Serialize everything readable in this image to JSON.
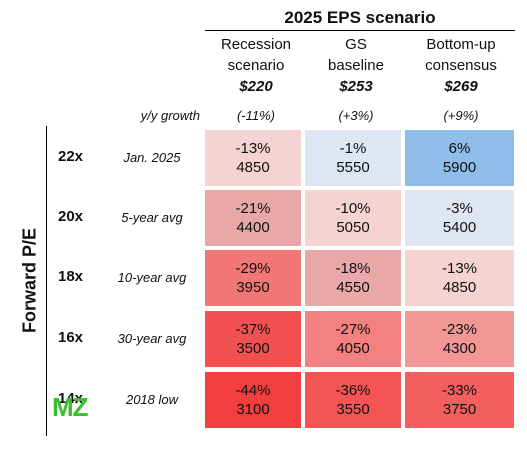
{
  "chart_data": {
    "type": "table",
    "title": "2025 EPS scenario",
    "row_axis_label": "Forward P/E",
    "growth_row_label": "y/y growth",
    "columns": [
      {
        "label_line1": "Recession",
        "label_line2": "scenario",
        "eps": "$220",
        "growth": "(-11%)"
      },
      {
        "label_line1": "GS",
        "label_line2": "baseline",
        "eps": "$253",
        "growth": "(+3%)"
      },
      {
        "label_line1": "Bottom-up",
        "label_line2": "consensus",
        "eps": "$269",
        "growth": "(+9%)"
      }
    ],
    "rows": [
      {
        "pe": "22x",
        "label": "Jan. 2025",
        "cells": [
          {
            "pct": "-13%",
            "level": "4850",
            "color": "#f6d3d3"
          },
          {
            "pct": "-1%",
            "level": "5550",
            "color": "#dde6f2"
          },
          {
            "pct": "6%",
            "level": "5900",
            "color": "#8dbde8"
          }
        ]
      },
      {
        "pe": "20x",
        "label": "5-year avg",
        "cells": [
          {
            "pct": "-21%",
            "level": "4400",
            "color": "#e9a8a8"
          },
          {
            "pct": "-10%",
            "level": "5050",
            "color": "#f6d3d3"
          },
          {
            "pct": "-3%",
            "level": "5400",
            "color": "#dfe5f1"
          }
        ]
      },
      {
        "pe": "18x",
        "label": "10-year avg",
        "cells": [
          {
            "pct": "-29%",
            "level": "3950",
            "color": "#f27777"
          },
          {
            "pct": "-18%",
            "level": "4550",
            "color": "#e9a8a8"
          },
          {
            "pct": "-13%",
            "level": "4850",
            "color": "#f6d3d3"
          }
        ]
      },
      {
        "pe": "16x",
        "label": "30-year avg",
        "cells": [
          {
            "pct": "-37%",
            "level": "3500",
            "color": "#f25151"
          },
          {
            "pct": "-27%",
            "level": "4050",
            "color": "#f48080"
          },
          {
            "pct": "-23%",
            "level": "4300",
            "color": "#f29696"
          }
        ]
      },
      {
        "pe": "14x",
        "label": "2018 low",
        "cells": [
          {
            "pct": "-44%",
            "level": "3100",
            "color": "#f23e3e"
          },
          {
            "pct": "-36%",
            "level": "3550",
            "color": "#f35454"
          },
          {
            "pct": "-33%",
            "level": "3750",
            "color": "#f35e5e"
          }
        ]
      }
    ]
  },
  "watermark": {
    "text": "MZ"
  }
}
